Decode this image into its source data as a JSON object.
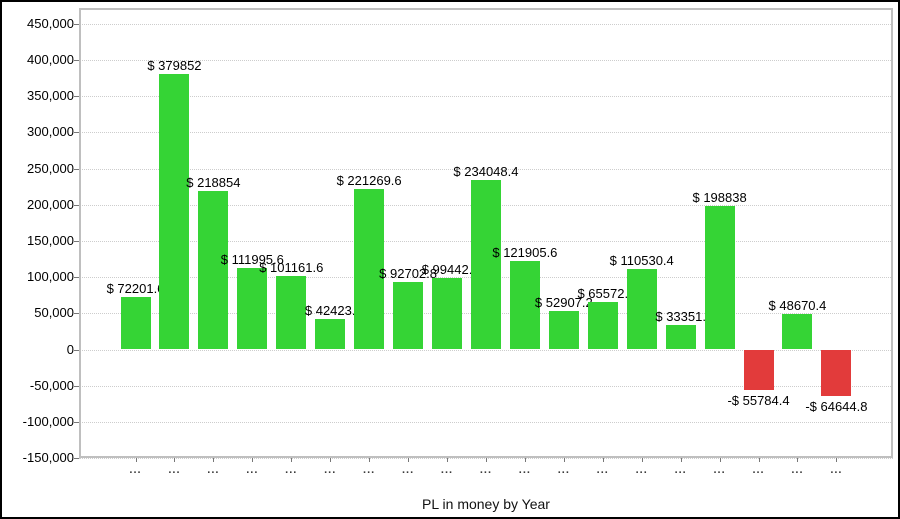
{
  "chart_data": {
    "type": "bar",
    "title": "",
    "xlabel": "PL in money by Year",
    "ylabel": "",
    "ylim": [
      -150000,
      450000
    ],
    "ytick_step": 50000,
    "grid": "horizontal-dotted",
    "legend": "none",
    "colors": {
      "positive": "#35d435",
      "negative": "#e23b3b"
    },
    "categories": [
      "...",
      "...",
      "...",
      "...",
      "...",
      "...",
      "...",
      "...",
      "...",
      "...",
      "...",
      "...",
      "...",
      "...",
      "...",
      "...",
      "...",
      "...",
      "..."
    ],
    "bars": [
      {
        "value": 72201.6,
        "label": "$ 72201.6"
      },
      {
        "value": 379852,
        "label": "$ 379852"
      },
      {
        "value": 218854,
        "label": "$ 218854"
      },
      {
        "value": 111995.6,
        "label": "$ 111995.6"
      },
      {
        "value": 101161.6,
        "label": "$ 101161.6"
      },
      {
        "value": 42423,
        "label": "$ 42423."
      },
      {
        "value": 221269.6,
        "label": "$ 221269.6"
      },
      {
        "value": 92702.8,
        "label": "$ 92702.8"
      },
      {
        "value": 99442,
        "label": "$ 99442."
      },
      {
        "value": 234048.4,
        "label": "$ 234048.4"
      },
      {
        "value": 121905.6,
        "label": "$ 121905.6"
      },
      {
        "value": 52907.2,
        "label": "$ 52907.2"
      },
      {
        "value": 65572,
        "label": "$ 65572."
      },
      {
        "value": 110530.4,
        "label": "$ 110530.4"
      },
      {
        "value": 33351,
        "label": "$ 33351."
      },
      {
        "value": 198838,
        "label": "$ 198838"
      },
      {
        "value": -55784.4,
        "label": "-$ 55784.4"
      },
      {
        "value": 48670.4,
        "label": "$ 48670.4"
      },
      {
        "value": -64644.8,
        "label": "-$ 64644.8"
      }
    ],
    "yticks": [
      {
        "value": 450000,
        "label": "450,000"
      },
      {
        "value": 400000,
        "label": "400,000"
      },
      {
        "value": 350000,
        "label": "350,000"
      },
      {
        "value": 300000,
        "label": "300,000"
      },
      {
        "value": 250000,
        "label": "250,000"
      },
      {
        "value": 200000,
        "label": "200,000"
      },
      {
        "value": 150000,
        "label": "150,000"
      },
      {
        "value": 100000,
        "label": "100,000"
      },
      {
        "value": 50000,
        "label": "50,000"
      },
      {
        "value": 0,
        "label": "0"
      },
      {
        "value": -50000,
        "label": "-50,000"
      },
      {
        "value": -100000,
        "label": "-100,000"
      },
      {
        "value": -150000,
        "label": "-150,000"
      }
    ]
  }
}
